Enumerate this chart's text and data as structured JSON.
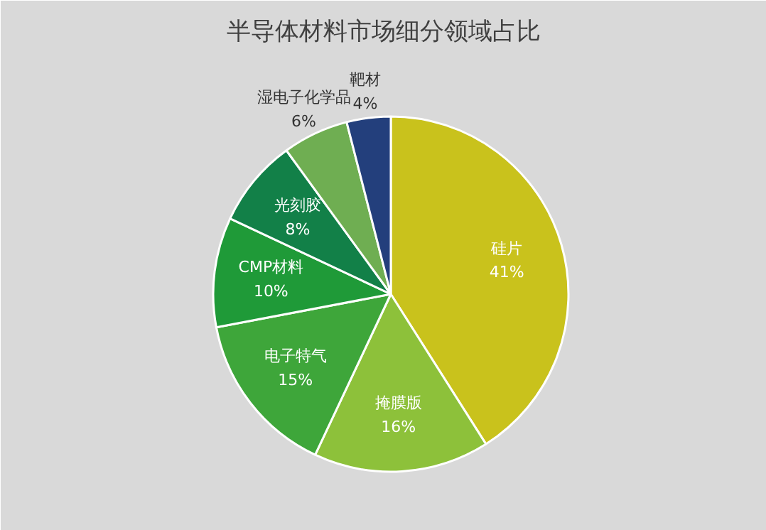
{
  "chart_data": {
    "type": "pie",
    "title": "半导体材料市场细分领域占比",
    "categories": [
      "硅片",
      "掩膜版",
      "电子特气",
      "CMP材料",
      "光刻胶",
      "湿电子化学品",
      "靶材"
    ],
    "values": [
      41,
      16,
      15,
      10,
      8,
      6,
      4
    ],
    "value_labels": [
      "41%",
      "16%",
      "15%",
      "10%",
      "8%",
      "6%",
      "4%"
    ],
    "colors": [
      "#c9c21c",
      "#8dc13a",
      "#3ea63a",
      "#1f9a38",
      "#128048",
      "#6fae52",
      "#233f7c"
    ]
  }
}
